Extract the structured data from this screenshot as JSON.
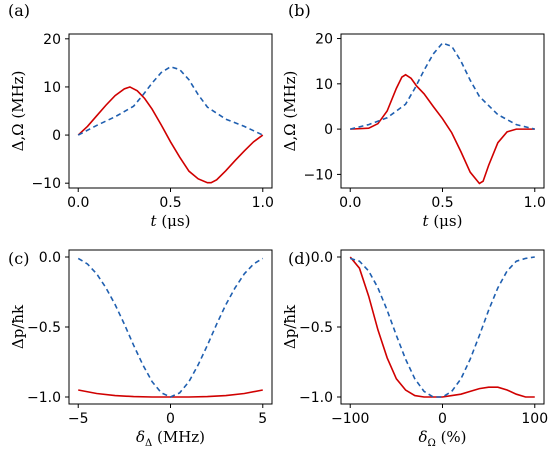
{
  "colors": {
    "red_series": "#d00000",
    "blue_series": "#1f5fb0",
    "axes": "#000000"
  },
  "chart_data": [
    {
      "panel": "(a)",
      "type": "line",
      "xlabel_var": "t",
      "xlabel_unit": "(μs)",
      "ylabel": "Δ,Ω (MHz)",
      "xlim": [
        -0.05,
        1.05
      ],
      "ylim": [
        -11,
        21
      ],
      "xticks": [
        0.0,
        0.5,
        1.0
      ],
      "xtick_labels": [
        "0.0",
        "0.5",
        "1.0"
      ],
      "yticks": [
        -10,
        0,
        10,
        20
      ],
      "ytick_labels": [
        "−10",
        "0",
        "10",
        "20"
      ],
      "grid": false,
      "series": [
        {
          "color": "#d00000",
          "style": "solid",
          "x": [
            0,
            0.05,
            0.1,
            0.15,
            0.2,
            0.25,
            0.28,
            0.32,
            0.36,
            0.4,
            0.45,
            0.5,
            0.55,
            0.6,
            0.65,
            0.7,
            0.72,
            0.75,
            0.8,
            0.85,
            0.9,
            0.95,
            1.0
          ],
          "y": [
            0,
            1.8,
            4.0,
            6.2,
            8.2,
            9.6,
            10.0,
            9.2,
            7.6,
            5.4,
            2.1,
            -1.4,
            -4.6,
            -7.5,
            -9.1,
            -9.9,
            -9.9,
            -9.3,
            -7.4,
            -5.3,
            -3.3,
            -1.4,
            0
          ]
        },
        {
          "color": "#1f5fb0",
          "style": "dashed",
          "x": [
            0,
            0.1,
            0.2,
            0.3,
            0.35,
            0.4,
            0.45,
            0.5,
            0.55,
            0.6,
            0.65,
            0.7,
            0.8,
            0.9,
            1.0
          ],
          "y": [
            0,
            2.0,
            3.8,
            6.0,
            8.3,
            10.8,
            13.0,
            14.2,
            13.6,
            11.5,
            8.4,
            5.8,
            3.3,
            1.8,
            0
          ]
        }
      ]
    },
    {
      "panel": "(b)",
      "type": "line",
      "xlabel_var": "t",
      "xlabel_unit": "(μs)",
      "ylabel": "Δ,Ω (MHz)",
      "xlim": [
        -0.05,
        1.05
      ],
      "ylim": [
        -13,
        21
      ],
      "xticks": [
        0.0,
        0.5,
        1.0
      ],
      "xtick_labels": [
        "0.0",
        "0.5",
        "1.0"
      ],
      "yticks": [
        -10,
        0,
        10,
        20
      ],
      "ytick_labels": [
        "−10",
        "0",
        "10",
        "20"
      ],
      "grid": false,
      "series": [
        {
          "color": "#d00000",
          "style": "solid",
          "x": [
            0,
            0.1,
            0.15,
            0.2,
            0.25,
            0.28,
            0.3,
            0.33,
            0.36,
            0.4,
            0.45,
            0.5,
            0.55,
            0.6,
            0.65,
            0.7,
            0.72,
            0.75,
            0.8,
            0.85,
            0.9,
            1.0
          ],
          "y": [
            0,
            0.2,
            1.2,
            4.0,
            9.0,
            11.5,
            12.0,
            11.2,
            9.5,
            7.8,
            5.0,
            2.3,
            -0.8,
            -5.0,
            -9.5,
            -12.0,
            -11.5,
            -8.0,
            -3.0,
            -0.6,
            0,
            0
          ]
        },
        {
          "color": "#1f5fb0",
          "style": "dashed",
          "x": [
            0,
            0.1,
            0.2,
            0.3,
            0.35,
            0.4,
            0.45,
            0.5,
            0.55,
            0.6,
            0.65,
            0.7,
            0.8,
            0.9,
            1.0
          ],
          "y": [
            0,
            1.0,
            2.5,
            5.5,
            9.0,
            13.0,
            16.6,
            19.0,
            18.3,
            15.0,
            10.8,
            7.2,
            3.2,
            1.0,
            0
          ]
        }
      ]
    },
    {
      "panel": "(c)",
      "type": "line",
      "xlabel_var": "δ",
      "xlabel_sub": "Δ",
      "xlabel_unit": "(MHz)",
      "ylabel": "Δp/ħk",
      "xlim": [
        -5.5,
        5.5
      ],
      "ylim": [
        -1.05,
        0.05
      ],
      "xticks": [
        -5,
        0,
        5
      ],
      "xtick_labels": [
        "−5",
        "0",
        "5"
      ],
      "yticks": [
        -1.0,
        -0.5,
        0.0
      ],
      "ytick_labels": [
        "−1.0",
        "−0.5",
        "0.0"
      ],
      "grid": false,
      "series": [
        {
          "color": "#d00000",
          "style": "solid",
          "x": [
            -5,
            -4,
            -3,
            -2,
            -1,
            0,
            1,
            2,
            3,
            4,
            5
          ],
          "y": [
            -0.95,
            -0.975,
            -0.99,
            -0.997,
            -1.0,
            -1.0,
            -1.0,
            -0.997,
            -0.99,
            -0.975,
            -0.95
          ]
        },
        {
          "color": "#1f5fb0",
          "style": "dashed",
          "x": [
            -5,
            -4.5,
            -4,
            -3.5,
            -3,
            -2.5,
            -2,
            -1.5,
            -1,
            -0.5,
            0,
            0.5,
            1,
            1.5,
            2,
            2.5,
            3,
            3.5,
            4,
            4.5,
            5
          ],
          "y": [
            -0.01,
            -0.05,
            -0.12,
            -0.22,
            -0.34,
            -0.48,
            -0.63,
            -0.77,
            -0.89,
            -0.97,
            -1.0,
            -0.97,
            -0.89,
            -0.77,
            -0.63,
            -0.48,
            -0.34,
            -0.22,
            -0.12,
            -0.05,
            -0.01
          ]
        }
      ]
    },
    {
      "panel": "(d)",
      "type": "line",
      "xlabel_var": "δ",
      "xlabel_sub": "Ω",
      "xlabel_unit": "(%)",
      "ylabel": "Δp/ħk",
      "xlim": [
        -110,
        110
      ],
      "ylim": [
        -1.05,
        0.05
      ],
      "xticks": [
        -100,
        0,
        100
      ],
      "xtick_labels": [
        "−100",
        "0",
        "100"
      ],
      "yticks": [
        -1.0,
        -0.5,
        0.0
      ],
      "ytick_labels": [
        "−1.0",
        "−0.5",
        "0.0"
      ],
      "grid": false,
      "series": [
        {
          "color": "#d00000",
          "style": "solid",
          "x": [
            -100,
            -90,
            -80,
            -70,
            -60,
            -50,
            -40,
            -30,
            -20,
            -10,
            0,
            10,
            20,
            30,
            40,
            50,
            60,
            70,
            80,
            90,
            100
          ],
          "y": [
            0,
            -0.08,
            -0.28,
            -0.52,
            -0.72,
            -0.87,
            -0.95,
            -0.99,
            -1.0,
            -1.0,
            -1.0,
            -0.99,
            -0.98,
            -0.96,
            -0.94,
            -0.93,
            -0.93,
            -0.95,
            -0.98,
            -1.0,
            -1.0
          ]
        },
        {
          "color": "#1f5fb0",
          "style": "dashed",
          "x": [
            -100,
            -90,
            -80,
            -70,
            -60,
            -50,
            -40,
            -30,
            -20,
            -10,
            0,
            10,
            20,
            30,
            40,
            50,
            60,
            70,
            80,
            90,
            100
          ],
          "y": [
            -0.01,
            -0.03,
            -0.1,
            -0.22,
            -0.38,
            -0.56,
            -0.73,
            -0.87,
            -0.96,
            -1.0,
            -1.0,
            -0.96,
            -0.87,
            -0.73,
            -0.56,
            -0.38,
            -0.22,
            -0.1,
            -0.03,
            -0.01,
            0
          ]
        }
      ]
    }
  ]
}
